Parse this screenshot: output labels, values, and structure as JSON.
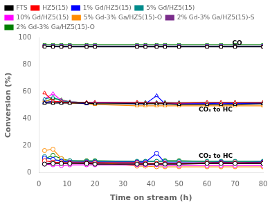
{
  "chart_data": {
    "type": "line",
    "xlabel": "Time on stream (h)",
    "ylabel": "Conversion (%)",
    "x": [
      2,
      5,
      8,
      11,
      17,
      20,
      35,
      38,
      42,
      45,
      50,
      60,
      65,
      70,
      80
    ],
    "xlim": [
      0,
      80
    ],
    "xticks": [
      0,
      10,
      20,
      30,
      40,
      50,
      60,
      70,
      80
    ],
    "ylim": [
      0,
      100
    ],
    "yticks": [
      0,
      20,
      40,
      60,
      80,
      100
    ],
    "grid": false,
    "legend": "upper left",
    "annotations": [
      {
        "text": "CO",
        "x": 69,
        "y": 95.5
      },
      {
        "text": "COₓ to HC",
        "x": 57,
        "y": 46.5
      },
      {
        "text": "CO₂ to HC",
        "x": 57,
        "y": 12.5
      }
    ],
    "series": [
      {
        "name": "FTS",
        "color": "#000000",
        "lines": [
          {
            "marker": "square",
            "values": [
              93.2,
              93.1,
              93.0,
              93.0,
              93.0,
              93.0,
              93.0,
              93.0,
              93.0,
              93.0,
              93.0,
              93.0,
              93.0,
              93.0,
              93.0
            ]
          },
          {
            "marker": "triangle",
            "values": [
              51.5,
              51.5,
              51.5,
              51.5,
              51.5,
              51.0,
              51.0,
              51.0,
              51.0,
              51.0,
              50.5,
              50.5,
              50.5,
              50.5,
              51.0
            ]
          },
          {
            "marker": "circle",
            "values": [
              6.5,
              7.0,
              7.0,
              7.0,
              7.0,
              6.5,
              6.5,
              6.5,
              6.5,
              6.5,
              6.5,
              7.0,
              7.0,
              7.0,
              7.0
            ]
          }
        ]
      },
      {
        "name": "HZ5(15)",
        "color": "#ff0000",
        "lines": [
          {
            "marker": "square",
            "values": [
              93.2,
              93.2,
              93.2,
              93.2,
              93.2,
              93.2,
              93.2,
              93.2,
              93.2,
              93.2,
              93.2,
              93.2,
              93.2,
              93.2,
              93.2
            ]
          },
          {
            "marker": "triangle",
            "values": [
              59.0,
              53.0,
              52.5,
              52.0,
              52.0,
              52.0,
              52.0,
              51.5,
              51.5,
              51.5,
              51.5,
              52.0,
              52.0,
              52.0,
              52.0
            ]
          },
          {
            "marker": "circle",
            "values": [
              9.0,
              8.0,
              7.5,
              7.5,
              7.5,
              7.5,
              7.5,
              7.0,
              7.0,
              7.0,
              7.0,
              7.5,
              7.5,
              7.5,
              7.5
            ]
          }
        ]
      },
      {
        "name": "1% Gd/HZ5(15)",
        "color": "#0000ff",
        "lines": [
          {
            "marker": "square",
            "values": [
              93.5,
              93.5,
              93.5,
              93.5,
              93.5,
              93.5,
              93.5,
              93.5,
              93.5,
              93.5,
              93.5,
              93.5,
              93.5,
              93.5,
              93.5
            ]
          },
          {
            "marker": "triangle",
            "values": [
              52.0,
              53.0,
              52.0,
              52.0,
              51.0,
              52.0,
              51.0,
              51.0,
              57.0,
              51.0,
              51.0,
              51.0,
              51.5,
              51.0,
              51.5
            ]
          },
          {
            "marker": "circle",
            "values": [
              11.0,
              10.0,
              8.5,
              8.0,
              8.0,
              8.0,
              8.0,
              8.0,
              14.5,
              7.5,
              7.5,
              7.5,
              8.0,
              7.5,
              8.0
            ]
          }
        ]
      },
      {
        "name": "5% Gd/HZ5(15)",
        "color": "#008b8b",
        "lines": [
          {
            "marker": "square",
            "values": [
              93.5,
              93.5,
              93.5,
              93.5,
              93.5,
              93.5,
              93.5,
              93.5,
              93.5,
              93.5,
              93.5,
              93.5,
              93.5,
              93.5,
              93.5
            ]
          },
          {
            "marker": "triangle",
            "values": [
              54.5,
              56.0,
              53.0,
              52.5,
              52.0,
              52.0,
              52.0,
              52.0,
              52.0,
              52.0,
              52.0,
              52.0,
              52.0,
              52.0,
              52.0
            ]
          },
          {
            "marker": "circle",
            "values": [
              12.0,
              10.0,
              9.0,
              9.0,
              8.5,
              8.5,
              8.5,
              8.5,
              8.5,
              8.5,
              8.5,
              8.5,
              8.5,
              8.5,
              8.5
            ]
          }
        ]
      },
      {
        "name": "10% Gd/HZ5(15)",
        "color": "#ff00ff",
        "lines": [
          {
            "marker": "square",
            "values": [
              93.5,
              93.5,
              93.5,
              93.5,
              93.5,
              93.5,
              93.5,
              93.5,
              93.5,
              93.5,
              93.5,
              93.5,
              93.5,
              93.5,
              93.5
            ]
          },
          {
            "marker": "triangle",
            "values": [
              54.5,
              58.5,
              53.5,
              52.5,
              52.0,
              52.0,
              52.0,
              51.5,
              52.0,
              51.5,
              51.5,
              51.5,
              51.5,
              51.5,
              51.5
            ]
          },
          {
            "marker": "circle",
            "values": [
              6.5,
              6.0,
              5.5,
              6.0,
              6.0,
              6.0,
              6.0,
              6.0,
              6.0,
              5.5,
              5.5,
              5.5,
              5.5,
              5.5,
              5.5
            ]
          }
        ]
      },
      {
        "name": "5% Gd-3% Ga/HZ5(15)-O",
        "color": "#ff8c00",
        "lines": [
          {
            "marker": "square",
            "values": [
              93.5,
              93.5,
              93.5,
              93.5,
              93.5,
              93.5,
              93.5,
              93.5,
              93.5,
              93.5,
              93.5,
              93.5,
              93.5,
              93.5,
              93.5
            ]
          },
          {
            "marker": "triangle",
            "values": [
              53.5,
              52.5,
              52.0,
              51.5,
              51.0,
              50.5,
              49.5,
              49.5,
              49.5,
              49.5,
              49.5,
              49.5,
              49.5,
              49.5,
              49.5
            ]
          },
          {
            "marker": "circle",
            "values": [
              16.5,
              17.5,
              10.5,
              8.5,
              8.5,
              8.0,
              5.0,
              5.0,
              4.5,
              4.5,
              4.5,
              4.5,
              4.5,
              4.5,
              4.5
            ]
          }
        ]
      },
      {
        "name": "2% Gd-3% Ga/HZ5(15)-S",
        "color": "#7b2d8b",
        "lines": [
          {
            "marker": "square",
            "values": [
              93.5,
              93.5,
              93.5,
              93.5,
              93.5,
              93.5,
              93.5,
              93.5,
              93.5,
              93.5,
              93.5,
              93.5,
              93.5,
              93.5,
              93.5
            ]
          },
          {
            "marker": "triangle",
            "values": [
              52.0,
              52.0,
              52.0,
              52.0,
              52.0,
              52.0,
              52.0,
              52.0,
              52.0,
              51.5,
              51.5,
              51.5,
              51.5,
              51.5,
              51.5
            ]
          },
          {
            "marker": "circle",
            "values": [
              7.0,
              7.5,
              7.5,
              7.5,
              7.0,
              7.0,
              7.0,
              7.0,
              7.0,
              7.0,
              7.0,
              7.0,
              7.0,
              7.0,
              7.0
            ]
          }
        ]
      },
      {
        "name": "2% Gd-3% Ga/HZ5(15)-O",
        "color": "#008000",
        "lines": [
          {
            "marker": "square",
            "values": [
              94.5,
              94.5,
              94.5,
              94.5,
              94.5,
              94.5,
              94.5,
              94.5,
              94.5,
              94.5,
              94.5,
              94.5,
              94.5,
              94.5,
              94.5
            ]
          },
          {
            "marker": "triangle",
            "values": [
              52.5,
              55.0,
              54.0,
              52.5,
              52.0,
              52.0,
              52.0,
              51.5,
              51.5,
              52.0,
              51.5,
              52.0,
              52.0,
              52.0,
              52.0
            ]
          },
          {
            "marker": "circle",
            "values": [
              10.5,
              13.0,
              10.5,
              9.0,
              9.0,
              9.0,
              8.5,
              8.5,
              8.5,
              9.0,
              9.0,
              8.5,
              8.5,
              8.5,
              8.5
            ]
          }
        ]
      }
    ]
  }
}
